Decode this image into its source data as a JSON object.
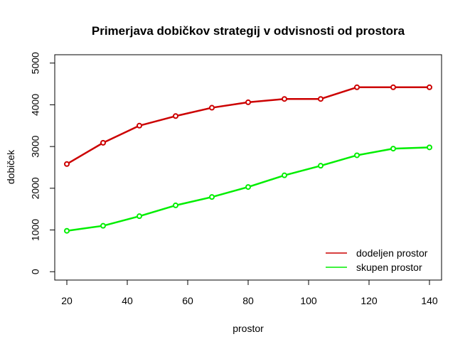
{
  "chart_data": {
    "type": "line",
    "title": "Primerjava dobičkov strategij v odvisnosti od prostora",
    "xlabel": "prostor",
    "ylabel": "dobiček",
    "xlim": [
      16,
      144
    ],
    "ylim": [
      -200,
      5200
    ],
    "xticks": [
      20,
      40,
      60,
      80,
      100,
      120,
      140
    ],
    "yticks": [
      0,
      1000,
      2000,
      3000,
      4000,
      5000
    ],
    "x": [
      20,
      32,
      44,
      56,
      68,
      80,
      92,
      104,
      116,
      128,
      140
    ],
    "series": [
      {
        "name": "dodeljen prostor",
        "color": "#cc0000",
        "values": [
          2580,
          3090,
          3500,
          3730,
          3930,
          4060,
          4140,
          4140,
          4420,
          4420,
          4420
        ]
      },
      {
        "name": "skupen prostor",
        "color": "#00ee00",
        "values": [
          980,
          1100,
          1330,
          1590,
          1790,
          2030,
          2310,
          2540,
          2790,
          2950,
          2980
        ]
      }
    ],
    "grid": false,
    "legend_position": "bottom-right"
  }
}
